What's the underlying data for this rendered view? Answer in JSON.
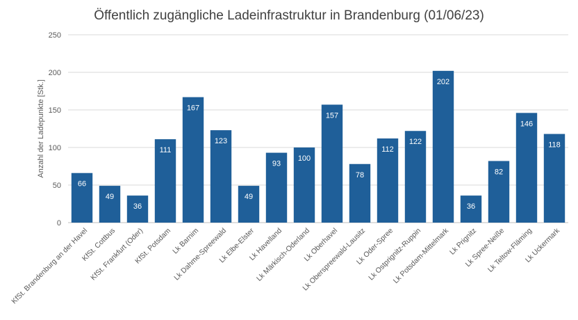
{
  "chart_data": {
    "type": "bar",
    "title": "Öffentlich zugängliche Ladeinfrastruktur in Brandenburg (01/06/23)",
    "xlabel": "",
    "ylabel": "Anzahl der Ladepunkte [Stk.]",
    "ylim": [
      0,
      250
    ],
    "yticks": [
      0,
      50,
      100,
      150,
      200,
      250
    ],
    "grid": true,
    "bar_color": "#1f5f99",
    "categories": [
      "KfSt. Brandenburg an der Havel",
      "KfSt. Cottbus",
      "KfSt. Frankfurt (Oder)",
      "KfSt. Potsdam",
      "Lk Barnim",
      "Lk Dahme-Spreewald",
      "Lk Elbe-Elster",
      "Lk Havelland",
      "Lk Märkisch-Oderland",
      "Lk Oberhavel",
      "Lk Oberspreewald-Lausitz",
      "Lk Oder-Spree",
      "Lk Ostprignitz-Ruppin",
      "Lk Potsdam-Mittelmark",
      "Lk Prignitz",
      "Lk Spree-Neiße",
      "Lk Teltow-Fläming",
      "Lk Uckermark"
    ],
    "values": [
      66,
      49,
      36,
      111,
      167,
      123,
      49,
      93,
      100,
      157,
      78,
      112,
      122,
      202,
      36,
      82,
      146,
      118
    ]
  }
}
